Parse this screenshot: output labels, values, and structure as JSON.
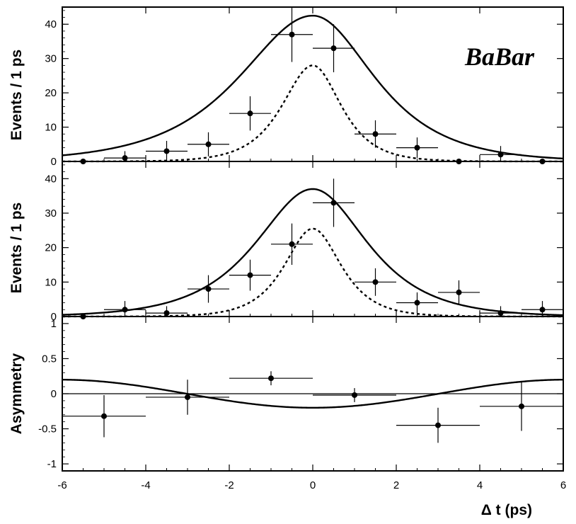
{
  "chart_data": [
    {
      "type": "scatter",
      "panel": "top",
      "ylabel": "Events / 1 ps",
      "xlim": [
        -6,
        6
      ],
      "ylim": [
        0,
        45
      ],
      "yticks": [
        0,
        10,
        20,
        30,
        40
      ],
      "logo": "BaBar",
      "points": [
        {
          "x": -5.5,
          "y": 0,
          "ey": 0
        },
        {
          "x": -4.5,
          "y": 1,
          "ey": 2
        },
        {
          "x": -3.5,
          "y": 3,
          "ey": 3
        },
        {
          "x": -2.5,
          "y": 5,
          "ey": 3.5
        },
        {
          "x": -1.5,
          "y": 14,
          "ey": 5
        },
        {
          "x": -0.5,
          "y": 37,
          "ey": 8
        },
        {
          "x": 0.5,
          "y": 33,
          "ey": 7
        },
        {
          "x": 1.5,
          "y": 8,
          "ey": 4
        },
        {
          "x": 2.5,
          "y": 4,
          "ey": 3
        },
        {
          "x": 3.5,
          "y": 0,
          "ey": 0
        },
        {
          "x": 4.5,
          "y": 2,
          "ey": 2.5
        },
        {
          "x": 5.5,
          "y": 0,
          "ey": 0
        }
      ],
      "curves": [
        {
          "style": "solid",
          "amplitude": 42.5,
          "tau_left": 1.55,
          "tau_right": 1.3,
          "baseline": 0
        },
        {
          "style": "dashed",
          "amplitude": 28,
          "tau_left": 0.65,
          "tau_right": 0.6,
          "baseline": 0
        }
      ]
    },
    {
      "type": "scatter",
      "panel": "middle",
      "ylabel": "Events / 1 ps",
      "xlim": [
        -6,
        6
      ],
      "ylim": [
        0,
        45
      ],
      "yticks": [
        0,
        10,
        20,
        30,
        40
      ],
      "points": [
        {
          "x": -5.5,
          "y": 0,
          "ey": 0
        },
        {
          "x": -4.5,
          "y": 2,
          "ey": 2.5
        },
        {
          "x": -3.5,
          "y": 1,
          "ey": 2
        },
        {
          "x": -2.5,
          "y": 8,
          "ey": 4
        },
        {
          "x": -1.5,
          "y": 12,
          "ey": 4.5
        },
        {
          "x": -0.5,
          "y": 21,
          "ey": 6
        },
        {
          "x": 0.5,
          "y": 33,
          "ey": 7
        },
        {
          "x": 1.5,
          "y": 10,
          "ey": 4
        },
        {
          "x": 2.5,
          "y": 4,
          "ey": 3
        },
        {
          "x": 3.5,
          "y": 7,
          "ey": 3.5
        },
        {
          "x": 4.5,
          "y": 1,
          "ey": 2
        },
        {
          "x": 5.5,
          "y": 2,
          "ey": 2.5
        }
      ],
      "curves": [
        {
          "style": "solid",
          "amplitude": 37,
          "tau_left": 1.2,
          "tau_right": 1.15,
          "baseline": 0
        },
        {
          "style": "dashed",
          "amplitude": 25.5,
          "tau_left": 0.6,
          "tau_right": 0.6,
          "baseline": 0
        }
      ]
    },
    {
      "type": "scatter",
      "panel": "bottom",
      "ylabel": "Asymmetry",
      "xlabel": "Δ t (ps)",
      "xlim": [
        -6,
        6
      ],
      "ylim": [
        -1.1,
        1.1
      ],
      "yticks": [
        -1,
        -0.5,
        0,
        0.5,
        1
      ],
      "ytick_labels": [
        "-1",
        "-0.5",
        "0",
        "0.5",
        "1"
      ],
      "xticks": [
        -6,
        -4,
        -2,
        0,
        2,
        4,
        6
      ],
      "xtick_labels": [
        "-6",
        "-4",
        "-2",
        "0",
        "2",
        "4",
        "6"
      ],
      "points": [
        {
          "x": -5,
          "y": -0.32,
          "ey": 0.3
        },
        {
          "x": -3,
          "y": -0.05,
          "ey": 0.25
        },
        {
          "x": -1,
          "y": 0.22,
          "ey": 0.1
        },
        {
          "x": 1,
          "y": -0.02,
          "ey": 0.1
        },
        {
          "x": 3,
          "y": -0.45,
          "ey": 0.25
        },
        {
          "x": 5,
          "y": -0.18,
          "ey": 0.35
        }
      ],
      "curves": [
        {
          "style": "solid",
          "kind": "sinusoid",
          "amplitude": 0.2,
          "omega": 0.52,
          "phase": -1.57
        }
      ]
    }
  ]
}
